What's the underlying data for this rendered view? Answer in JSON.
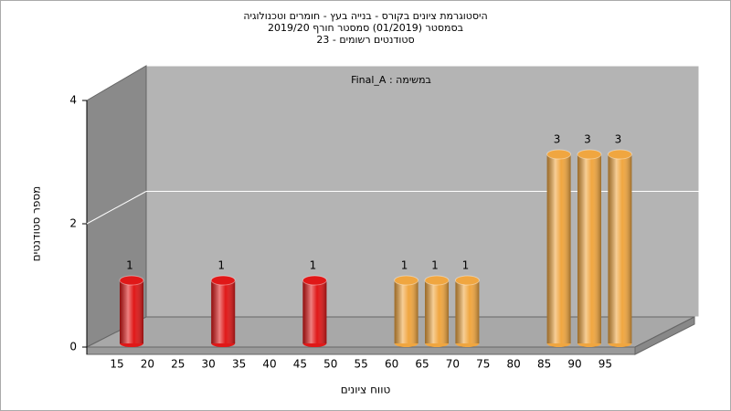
{
  "chart_data": {
    "type": "bar",
    "title": "היסטוגרמת ציונים בקורס - בנייה בעץ - חומרים וטכנולוגיה",
    "subtitle": "בסמסטר  (01/2019)  סמסטר חורף 2019/20",
    "subtitle2": "סטודנטים רשומים - 23",
    "annotation": "Final_A : במשימה",
    "x_label": "טווח ציונים",
    "y_label": "מספר סטודנטים",
    "categories": [
      "15",
      "20",
      "25",
      "30",
      "35",
      "40",
      "45",
      "50",
      "55",
      "60",
      "65",
      "70",
      "75",
      "80",
      "85",
      "90",
      "95"
    ],
    "values": [
      1,
      0,
      0,
      1,
      0,
      0,
      1,
      0,
      0,
      1,
      1,
      1,
      0,
      0,
      3,
      3,
      3
    ],
    "colors": [
      "#e01818",
      "#e01818",
      "#e01818",
      "#e01818",
      "#e01818",
      "#e01818",
      "#e01818",
      "#e01818",
      "#e01818",
      "#f0a640",
      "#f0a640",
      "#f0a640",
      "#f0a640",
      "#f0a640",
      "#f0a640",
      "#f0a640",
      "#f0a640"
    ],
    "ylim": [
      0,
      4
    ],
    "yticks": [
      0,
      2,
      4
    ],
    "grid": true
  }
}
